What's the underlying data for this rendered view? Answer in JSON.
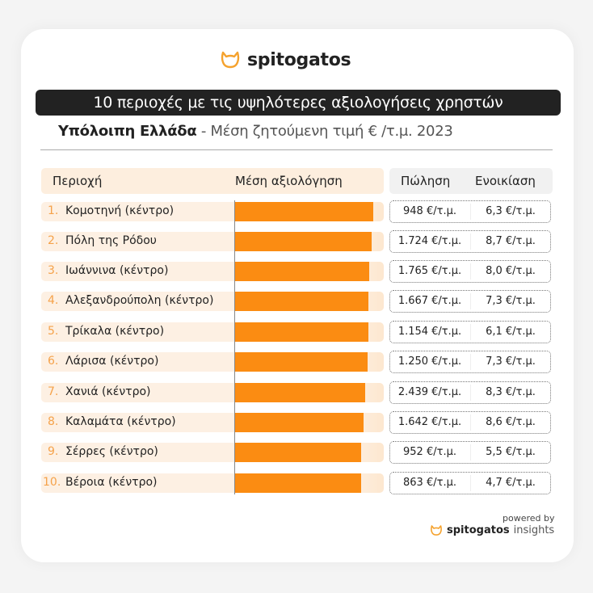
{
  "brand": {
    "name": "spitogatos",
    "accent": "#fb8c12"
  },
  "title": "10 περιοχές με τις υψηλότερες αξιολογήσεις χρηστών",
  "subtitle": {
    "region": "Υπόλοιπη Ελλάδα",
    "separator": " - ",
    "metric": "Μέση ζητούμενη τιμή € /τ.μ. 2023"
  },
  "headers": {
    "area": "Περιοχή",
    "rating": "Μέση αξιολόγηση",
    "sale": "Πώληση",
    "rent": "Ενοικίαση"
  },
  "rows": [
    {
      "rank": "1.",
      "name": "Κομοτηνή (κέντρο)",
      "sale": "948 €/τ.μ.",
      "rent": "6,3 €/τ.μ."
    },
    {
      "rank": "2.",
      "name": "Πόλη της Ρόδου",
      "sale": "1.724 €/τ.μ.",
      "rent": "8,7 €/τ.μ."
    },
    {
      "rank": "3.",
      "name": "Ιωάννινα (κέντρο)",
      "sale": "1.765 €/τ.μ.",
      "rent": "8,0 €/τ.μ."
    },
    {
      "rank": "4.",
      "name": "Αλεξανδρούπολη (κέντρο)",
      "sale": "1.667 €/τ.μ.",
      "rent": "7,3 €/τ.μ."
    },
    {
      "rank": "5.",
      "name": "Τρίκαλα (κέντρο)",
      "sale": "1.154 €/τ.μ.",
      "rent": "6,1 €/τ.μ."
    },
    {
      "rank": "6.",
      "name": "Λάρισα (κέντρο)",
      "sale": "1.250 €/τ.μ.",
      "rent": "7,3 €/τ.μ."
    },
    {
      "rank": "7.",
      "name": "Χανιά (κέντρο)",
      "sale": "2.439 €/τ.μ.",
      "rent": "8,3 €/τ.μ."
    },
    {
      "rank": "8.",
      "name": "Καλαμάτα (κέντρο)",
      "sale": "1.642 €/τ.μ.",
      "rent": "8,6 €/τ.μ."
    },
    {
      "rank": "9.",
      "name": "Σέρρες (κέντρο)",
      "sale": "952 €/τ.μ.",
      "rent": "5,5 €/τ.μ."
    },
    {
      "rank": "10.",
      "name": "Βέροια (κέντρο)",
      "sale": "863 €/τ.μ.",
      "rent": "4,7 €/τ.μ."
    }
  ],
  "footer": {
    "powered_by": "powered by",
    "brand_bold": "spitogatos",
    "brand_light": "insights"
  },
  "chart_data": {
    "type": "bar",
    "orientation": "horizontal",
    "title": "10 περιοχές με τις υψηλότερες αξιολογήσεις χρηστών",
    "subtitle": "Υπόλοιπη Ελλάδα - Μέση ζητούμενη τιμή € /τ.μ. 2023",
    "xlabel": "Μέση αξιολόγηση",
    "ylabel": "Περιοχή",
    "categories": [
      "Κομοτηνή (κέντρο)",
      "Πόλη της Ρόδου",
      "Ιωάννινα (κέντρο)",
      "Αλεξανδρούπολη (κέντρο)",
      "Τρίκαλα (κέντρο)",
      "Λάρισα (κέντρο)",
      "Χανιά (κέντρο)",
      "Καλαμάτα (κέντρο)",
      "Σέρρες (κέντρο)",
      "Βέροια (κέντρο)"
    ],
    "series": [
      {
        "name": "Μέση αξιολόγηση (relative bar length, % of track)",
        "values": [
          92.9,
          91.8,
          90.1,
          89.5,
          89.5,
          88.9,
          87.7,
          86.5,
          84.8,
          84.8
        ]
      },
      {
        "name": "Πώληση (€/τ.μ.)",
        "values": [
          948,
          1724,
          1765,
          1667,
          1154,
          1250,
          2439,
          1642,
          952,
          863
        ]
      },
      {
        "name": "Ενοικίαση (€/τ.μ.)",
        "values": [
          6.3,
          8.7,
          8.0,
          7.3,
          6.1,
          7.3,
          8.3,
          8.6,
          5.5,
          4.7
        ]
      }
    ],
    "grid": false,
    "legend": "none"
  }
}
